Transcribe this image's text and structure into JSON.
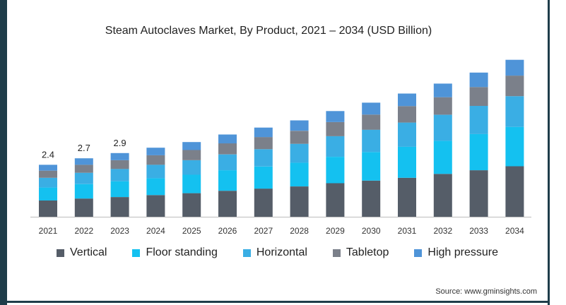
{
  "chart_data": {
    "type": "stacked-bar",
    "title": "Steam Autoclaves Market, By Product, 2021 – 2034 (USD Billion)",
    "categories": [
      "2021",
      "2022",
      "2023",
      "2024",
      "2025",
      "2026",
      "2027",
      "2028",
      "2029",
      "2030",
      "2031",
      "2032",
      "2033",
      "2034"
    ],
    "series": [
      {
        "name": "Vertical",
        "color": "#555d68",
        "values": [
          0.75,
          0.84,
          0.91,
          1.0,
          1.09,
          1.2,
          1.3,
          1.4,
          1.55,
          1.67,
          1.8,
          1.98,
          2.15,
          2.33
        ]
      },
      {
        "name": "Floor standing",
        "color": "#14c1f0",
        "values": [
          0.6,
          0.67,
          0.73,
          0.78,
          0.85,
          0.95,
          1.02,
          1.1,
          1.22,
          1.32,
          1.43,
          1.53,
          1.67,
          1.82
        ]
      },
      {
        "name": "Horizontal",
        "color": "#3aaee4",
        "values": [
          0.45,
          0.52,
          0.57,
          0.62,
          0.67,
          0.73,
          0.8,
          0.87,
          0.95,
          1.03,
          1.12,
          1.2,
          1.3,
          1.42
        ]
      },
      {
        "name": "Tabletop",
        "color": "#7b808a",
        "values": [
          0.33,
          0.37,
          0.4,
          0.44,
          0.47,
          0.51,
          0.56,
          0.6,
          0.65,
          0.7,
          0.76,
          0.81,
          0.87,
          0.95
        ]
      },
      {
        "name": "High pressure",
        "color": "#4f94d8",
        "values": [
          0.27,
          0.3,
          0.33,
          0.35,
          0.37,
          0.41,
          0.44,
          0.48,
          0.51,
          0.55,
          0.58,
          0.63,
          0.67,
          0.73
        ]
      }
    ],
    "data_labels": [
      {
        "category": "2021",
        "text": "2.4"
      },
      {
        "category": "2022",
        "text": "2.7"
      },
      {
        "category": "2023",
        "text": "2.9"
      }
    ],
    "ylim": [
      0,
      7.5
    ],
    "xlabel": "",
    "ylabel": "",
    "legend_position": "bottom"
  },
  "source": "Source: www.gminsights.com"
}
